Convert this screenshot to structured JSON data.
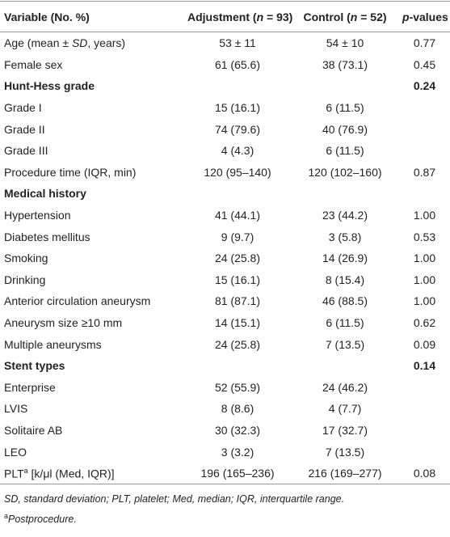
{
  "table": {
    "header": [
      [
        "Variable (No. %)"
      ],
      [
        "Adjustment (",
        "n",
        " = 93)"
      ],
      [
        "Control (",
        "n",
        " = 52)"
      ],
      [
        "p",
        "-values"
      ]
    ],
    "rows": [
      [
        [
          "Age (mean ± ",
          "SD",
          ", years)"
        ],
        "53 ± 11",
        "54 ± 10",
        "0.77"
      ],
      [
        "Female sex",
        "61 (65.6)",
        "38 (73.1)",
        "0.45"
      ],
      [
        "Hunt-Hess grade",
        null,
        null,
        "0.24"
      ],
      [
        "Grade I",
        "15 (16.1)",
        "6 (11.5)",
        null
      ],
      [
        "Grade II",
        "74 (79.6)",
        "40 (76.9)",
        null
      ],
      [
        "Grade III",
        "4 (4.3)",
        "6 (11.5)",
        null
      ],
      [
        "Procedure time (IQR, min)",
        "120 (95–140)",
        "120 (102–160)",
        "0.87"
      ],
      [
        "Medical history",
        null,
        null,
        null
      ],
      [
        "Hypertension",
        "41 (44.1)",
        "23 (44.2)",
        "1.00"
      ],
      [
        "Diabetes mellitus",
        "9 (9.7)",
        "3 (5.8)",
        "0.53"
      ],
      [
        "Smoking",
        "24 (25.8)",
        "14 (26.9)",
        "1.00"
      ],
      [
        "Drinking",
        "15 (16.1)",
        "8 (15.4)",
        "1.00"
      ],
      [
        "Anterior circulation aneurysm",
        "81 (87.1)",
        "46 (88.5)",
        "1.00"
      ],
      [
        "Aneurysm size ≥10 mm",
        "14 (15.1)",
        "6 (11.5)",
        "0.62"
      ],
      [
        "Multiple aneurysms",
        "24 (25.8)",
        "7 (13.5)",
        "0.09"
      ],
      [
        "Stent types",
        null,
        null,
        "0.14"
      ],
      [
        "Enterprise",
        "52 (55.9)",
        "24 (46.2)",
        null
      ],
      [
        "LVIS",
        "8 (8.6)",
        "4 (7.7)",
        null
      ],
      [
        "Solitaire AB",
        "30 (32.3)",
        "17 (32.7)",
        null
      ],
      [
        "LEO",
        "3 (3.2)",
        "7 (13.5)",
        null
      ],
      [
        [
          "PLT",
          "a",
          " [k/μl (Med, IQR)]"
        ],
        "196 (165–236)",
        "216 (169–277)",
        "0.08"
      ]
    ],
    "footnotes": [
      [
        "SD",
        ", standard deviation; PLT, platelet; Med, median; IQR, interquartile range."
      ],
      [
        "a",
        "Postprocedure."
      ]
    ]
  }
}
